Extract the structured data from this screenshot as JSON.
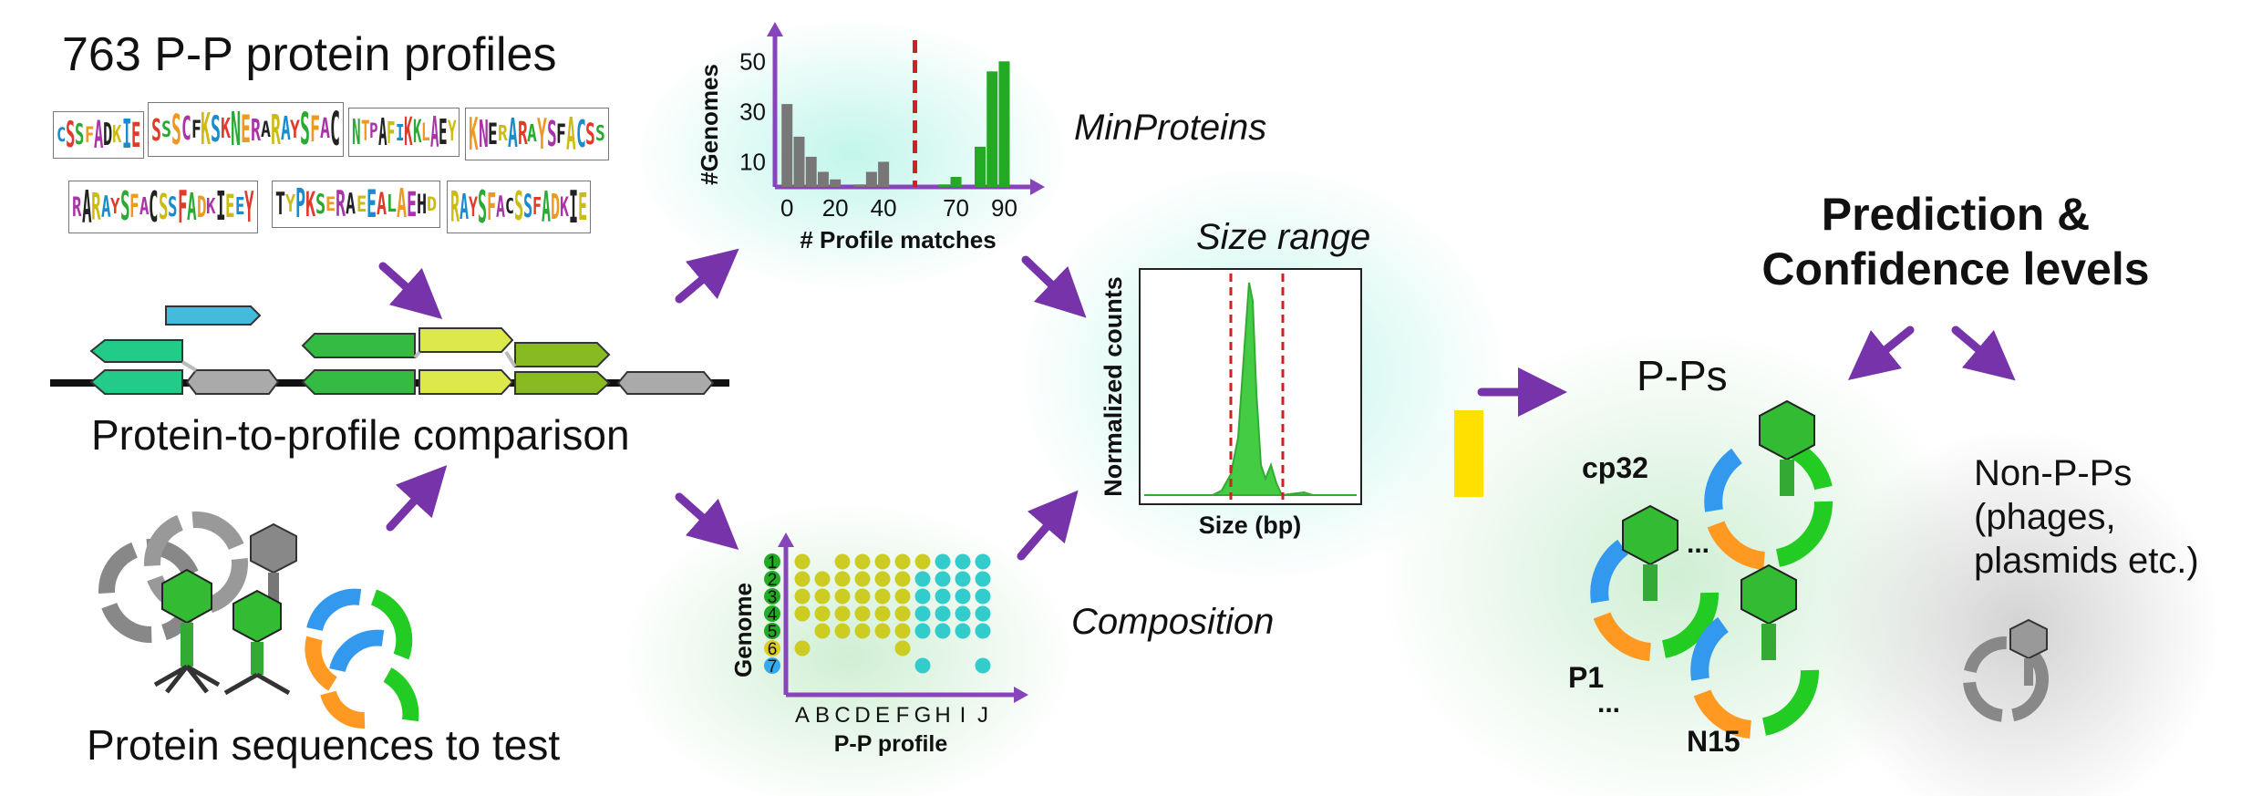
{
  "texts": {
    "profiles_title": "763 P-P protein profiles",
    "comparison": "Protein-to-profile comparison",
    "test_sequences": "Protein sequences to test",
    "minproteins": "MinProteins",
    "size_range": "Size range",
    "composition": "Composition",
    "prediction": "Prediction &",
    "confidence": "Confidence levels",
    "pps": "P-Ps",
    "nonpps": "Non-P-Ps (phages, plasmids etc.)",
    "cp32": "cp32",
    "p1": "P1",
    "n15": "N15",
    "dots1": "...",
    "dots2": "..."
  },
  "logos": [
    {
      "text": "CSSFADKIE"
    },
    {
      "text": "SSSCFKSKNERARAYSFAC"
    },
    {
      "text": "NTPAFIKKLAEY"
    },
    {
      "text": "KNERARAYSFACSS"
    },
    {
      "text": "RARAYSFACSSFADKIEEY"
    },
    {
      "text": "TYPKSERAEEALAEHD"
    },
    {
      "text": "RAYSFACSSFADKIE"
    }
  ],
  "chart_data": [
    {
      "type": "bar",
      "title": "",
      "xlabel": "# Profile matches",
      "ylabel": "#Genomes",
      "xticks": [
        0,
        20,
        40,
        70,
        90
      ],
      "yticks": [
        10,
        30,
        50
      ],
      "threshold": 53,
      "series": [
        {
          "color": "#777777",
          "points": [
            [
              0,
              33
            ],
            [
              5,
              20
            ],
            [
              10,
              12
            ],
            [
              15,
              6
            ],
            [
              20,
              3
            ],
            [
              30,
              1
            ],
            [
              35,
              6
            ],
            [
              40,
              10
            ]
          ]
        },
        {
          "color": "#22aa22",
          "points": [
            [
              65,
              1
            ],
            [
              70,
              4
            ],
            [
              80,
              16
            ],
            [
              85,
              46
            ],
            [
              90,
              50
            ]
          ]
        }
      ],
      "xlim": [
        -5,
        97
      ],
      "ylim": [
        0,
        57
      ]
    },
    {
      "type": "area",
      "title": "",
      "xlabel": "Size (bp)",
      "ylabel": "Normalized counts",
      "range_markers": [
        "lower",
        "upper"
      ]
    },
    {
      "type": "scatter",
      "title": "",
      "xlabel": "P-P profile",
      "ylabel": "Genome",
      "categories": [
        "A",
        "B",
        "C",
        "D",
        "E",
        "F",
        "G",
        "H",
        "I",
        "J"
      ],
      "genomes": [
        {
          "label": "1",
          "color": "#22aa22",
          "cells": [
            1,
            0,
            1,
            1,
            1,
            1,
            1,
            2,
            2,
            2
          ]
        },
        {
          "label": "2",
          "color": "#22aa22",
          "cells": [
            1,
            1,
            1,
            1,
            1,
            1,
            2,
            2,
            2,
            2
          ]
        },
        {
          "label": "3",
          "color": "#22aa22",
          "cells": [
            1,
            1,
            1,
            1,
            1,
            1,
            2,
            2,
            2,
            2
          ]
        },
        {
          "label": "4",
          "color": "#22aa22",
          "cells": [
            1,
            1,
            1,
            1,
            1,
            1,
            2,
            2,
            2,
            2
          ]
        },
        {
          "label": "5",
          "color": "#22aa22",
          "cells": [
            0,
            1,
            1,
            1,
            1,
            1,
            2,
            2,
            2,
            2
          ]
        },
        {
          "label": "6",
          "color": "#ddcc22",
          "cells": [
            1,
            0,
            0,
            0,
            0,
            1,
            0,
            0,
            0,
            0
          ]
        },
        {
          "label": "7",
          "color": "#33aaee",
          "cells": [
            0,
            0,
            0,
            0,
            0,
            0,
            2,
            0,
            0,
            2
          ]
        }
      ],
      "dot_colors": [
        "",
        "#cccc22",
        "#33cccc"
      ]
    }
  ],
  "colors": {
    "arrow": "#7733aa",
    "axis": "#8844bb",
    "green": "#22aa22",
    "gray": "#777777",
    "yellow": "#ffe000",
    "threshold": "#cc2222",
    "blue": "#3399ee",
    "orange": "#ff9922"
  }
}
